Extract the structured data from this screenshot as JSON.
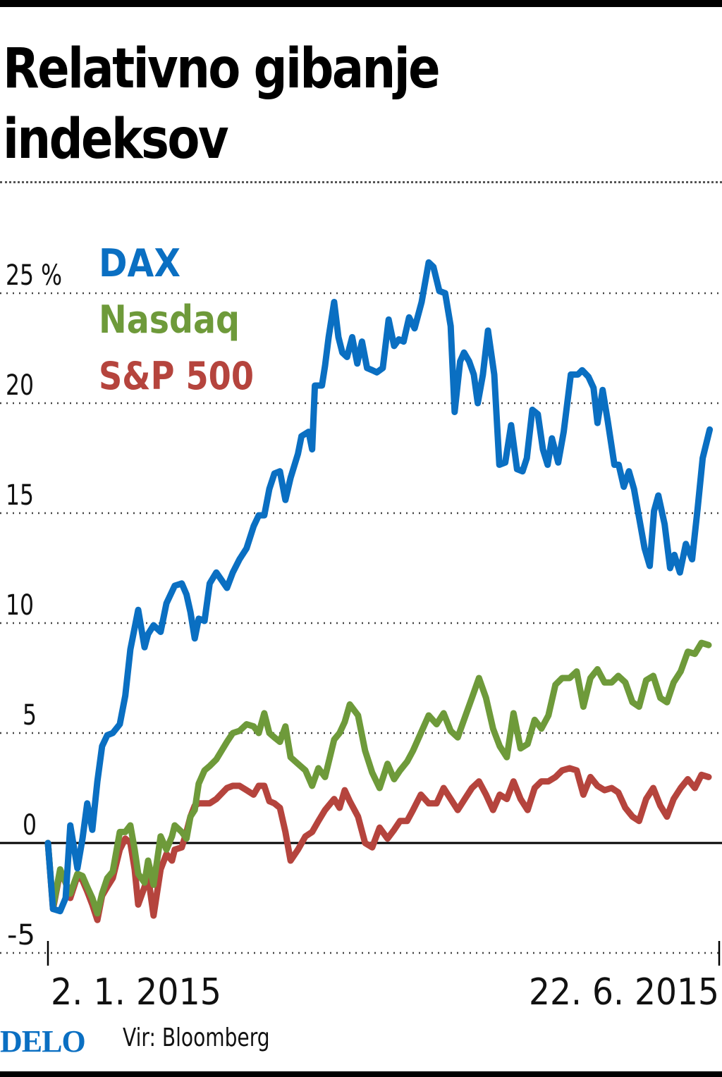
{
  "title": "Relativno gibanje indeksov",
  "title_lines": [
    "Relativno gibanje",
    "indeksov"
  ],
  "footer": {
    "logo": "DELO",
    "source": "Vir: Bloomberg"
  },
  "colors": {
    "DAX": "#0a6fc2",
    "Nasdaq": "#6e9a3a",
    "S&P 500": "#b5443d",
    "grid": "#444444",
    "zero_line": "#000000"
  },
  "chart_data": {
    "type": "line",
    "title": "Relativno gibanje indeksov",
    "xlabel": "",
    "ylabel": "%",
    "x_unit": "days since 2. 1. 2015",
    "xlim": [
      0,
      171
    ],
    "ylim": [
      -5,
      27
    ],
    "x_tick_labels": [
      "2. 1. 2015",
      "22. 6. 2015"
    ],
    "x_ticks": [
      0,
      171
    ],
    "y_ticks": [
      -5,
      0,
      5,
      10,
      15,
      20,
      25
    ],
    "y_tick_labels": [
      "-5",
      "0",
      "5",
      "10",
      "15",
      "20",
      "25 %"
    ],
    "grid": true,
    "legend": {
      "placement": "top-left",
      "entries": [
        "DAX",
        "Nasdaq",
        "S&P 500"
      ]
    },
    "series": [
      {
        "name": "DAX",
        "x": [
          0,
          1.3,
          3.1,
          4.5,
          5.7,
          7.5,
          8.8,
          10,
          11.3,
          12.6,
          13.8,
          15.1,
          16.5,
          18.3,
          19.7,
          21,
          23,
          24.6,
          25.5,
          26.9,
          28.7,
          30.2,
          32.3,
          34.1,
          35.3,
          36.3,
          37.4,
          38.4,
          39.9,
          41.2,
          42.9,
          45.6,
          47.1,
          48.8,
          50.6,
          52.4,
          53.7,
          55.1,
          56.4,
          57.7,
          59.1,
          60.5,
          61.8,
          63.7,
          64.6,
          66.4,
          67.3,
          68,
          69.8,
          70.6,
          71.5,
          72.9,
          74,
          75,
          76.2,
          77.5,
          78.8,
          80,
          81.3,
          82.6,
          83.8,
          85.3,
          86.8,
          88.2,
          89.4,
          90.6,
          92,
          93.4,
          94.3,
          95.2,
          97,
          98.2,
          99.7,
          101.2,
          102.6,
          103.6,
          105,
          106,
          107.3,
          108.5,
          109.5,
          110.8,
          112.1,
          113.7,
          115,
          116.5,
          118,
          119.5,
          120.9,
          122,
          123.4,
          124.8,
          126.1,
          127.3,
          128.4,
          130,
          131.4,
          133.2,
          135,
          136.1,
          137.7,
          139,
          140,
          141.3,
          142.6,
          144.3,
          145.4,
          146.7,
          148,
          149.3,
          150.6,
          152,
          153.3,
          154.4,
          155.5,
          157.1,
          158.5,
          159.6,
          161,
          162.5,
          164.1,
          165.5,
          166.8,
          168.6
        ],
        "values": [
          0,
          -3,
          -3.1,
          -2.5,
          0.8,
          -1.15,
          0.2,
          1.8,
          0.6,
          2.8,
          4.4,
          4.9,
          5.0,
          5.4,
          6.7,
          8.8,
          10.6,
          8.9,
          9.5,
          9.9,
          9.6,
          10.9,
          11.7,
          11.8,
          11.3,
          10.5,
          9.3,
          10.2,
          10.1,
          11.8,
          12.3,
          11.6,
          12.3,
          12.9,
          13.4,
          14.4,
          14.9,
          14.9,
          16.1,
          16.8,
          16.9,
          15.6,
          16.6,
          17.7,
          18.5,
          18.7,
          17.9,
          20.8,
          20.8,
          21.7,
          23.0,
          24.6,
          23.0,
          22.3,
          22.1,
          23.0,
          21.8,
          22.8,
          21.6,
          21.5,
          21.4,
          21.6,
          23.8,
          22.6,
          22.9,
          22.8,
          23.9,
          23.4,
          24.0,
          24.6,
          26.4,
          26.2,
          25.1,
          25.0,
          23.5,
          19.6,
          21.9,
          22.3,
          21.9,
          21.3,
          20.0,
          21.3,
          23.3,
          21.3,
          17.2,
          17.3,
          19.0,
          17.0,
          16.9,
          17.5,
          19.7,
          19.5,
          17.9,
          17.2,
          18.4,
          17.3,
          18.7,
          21.3,
          21.3,
          21.5,
          21.2,
          20.7,
          19.1,
          20.6,
          19.2,
          17.2,
          17.2,
          16.2,
          16.9,
          16.1,
          14.8,
          13.4,
          12.6,
          15.1,
          15.8,
          14.5,
          12.5,
          13.1,
          12.3,
          13.6,
          12.9,
          15.2,
          17.5,
          18.8
        ]
      },
      {
        "name": "Nasdaq",
        "x": [
          0,
          1.3,
          3.1,
          4.5,
          5.7,
          7.5,
          8.8,
          10,
          11.3,
          12.6,
          13.8,
          15.1,
          16.5,
          18.3,
          19.7,
          21,
          22.1,
          23,
          24.6,
          25.5,
          26.9,
          28.7,
          30.2,
          31.6,
          32.3,
          34.1,
          35.3,
          36.3,
          37.4,
          38.4,
          39.9,
          41.2,
          42.9,
          45.6,
          47.1,
          48.8,
          50.6,
          52.4,
          53.7,
          55.1,
          56.4,
          57.7,
          59.1,
          60.5,
          61.8,
          63.7,
          65.6,
          67.3,
          68.9,
          70.6,
          72.9,
          74.3,
          75.6,
          76.9,
          79,
          80.8,
          82.6,
          84.5,
          86.5,
          88.2,
          89.7,
          91.5,
          93,
          95,
          97,
          99,
          100.8,
          102.6,
          104.4,
          106.2,
          108,
          109.8,
          111.6,
          113.4,
          115.1,
          116.9,
          118.6,
          120.4,
          122.2,
          124,
          125.7,
          127.5,
          129.3,
          131,
          132.9,
          134.7,
          136.4,
          138.2,
          140,
          141.8,
          143.6,
          145.3,
          147.1,
          148.9,
          150.6,
          152.4,
          154.2,
          156,
          157.7,
          159.4,
          161.2,
          163,
          164.8,
          166.5,
          168.3
        ],
        "values": [
          0,
          -2.9,
          -1.2,
          -1.8,
          -2.3,
          -1.4,
          -1.5,
          -2.0,
          -2.5,
          -3.2,
          -2.3,
          -1.6,
          -1.3,
          0.5,
          0.5,
          0.8,
          -0.3,
          -1.4,
          -1.8,
          -0.8,
          -1.9,
          0.3,
          -0.3,
          0.3,
          0.8,
          0.5,
          0.2,
          1.2,
          1.5,
          2.7,
          3.3,
          3.5,
          3.8,
          4.6,
          5.0,
          5.1,
          5.4,
          5.3,
          5.0,
          5.9,
          5.0,
          4.8,
          4.6,
          5.3,
          3.9,
          3.6,
          3.3,
          2.6,
          3.4,
          3.0,
          4.7,
          5.0,
          5.5,
          6.3,
          5.8,
          4.2,
          3.2,
          2.5,
          3.6,
          2.9,
          3.3,
          3.7,
          4.2,
          5.0,
          5.8,
          5.4,
          5.9,
          5.1,
          4.8,
          5.7,
          6.6,
          7.5,
          6.6,
          5.2,
          4.4,
          3.9,
          5.9,
          4.3,
          4.5,
          5.6,
          5.2,
          5.8,
          7.2,
          7.5,
          7.5,
          7.8,
          6.2,
          7.5,
          7.9,
          7.3,
          7.3,
          7.6,
          7.3,
          6.4,
          6.2,
          7.4,
          7.6,
          6.6,
          6.4,
          7.3,
          7.8,
          8.7,
          8.6,
          9.1,
          9.0
        ]
      },
      {
        "name": "S&P 500",
        "x": [
          0,
          1.3,
          3.1,
          4.5,
          5.7,
          7.5,
          8.8,
          10,
          11.3,
          12.6,
          13.8,
          15.1,
          16.5,
          18.3,
          19.7,
          21,
          22.1,
          23,
          24.6,
          25.5,
          26.9,
          28.7,
          30.2,
          31.6,
          32.3,
          34.1,
          35.3,
          36.3,
          37.4,
          38.4,
          39.9,
          41.2,
          42.9,
          45.6,
          47.1,
          48.8,
          50.6,
          52.4,
          53.7,
          55.1,
          56.4,
          57.7,
          59.1,
          60.5,
          61.8,
          63.7,
          65.6,
          67.3,
          68.9,
          70.6,
          72.9,
          74.3,
          75.6,
          76.9,
          79,
          80.8,
          82.6,
          84.5,
          86.5,
          88.2,
          89.7,
          91.5,
          93,
          95,
          97,
          99,
          100.8,
          102.6,
          104.4,
          106.2,
          108,
          109.8,
          111.6,
          113.4,
          115.1,
          116.9,
          118.6,
          120.4,
          122.2,
          124,
          125.7,
          127.5,
          129.3,
          131,
          132.9,
          134.7,
          136.4,
          138.2,
          140,
          141.8,
          143.6,
          145.3,
          147.1,
          148.9,
          150.6,
          152.4,
          154.2,
          156,
          157.7,
          159.4,
          161.2,
          163,
          164.8,
          166.5,
          168.3
        ],
        "values": [
          0,
          -3.0,
          -1.3,
          -1.8,
          -2.5,
          -1.5,
          -1.7,
          -2.2,
          -2.8,
          -3.5,
          -2.4,
          -2.0,
          -1.6,
          -0.3,
          0.2,
          0.0,
          -1.2,
          -2.8,
          -2.0,
          -1.5,
          -3.3,
          -1.2,
          -0.5,
          -0.8,
          -0.3,
          -0.2,
          0.5,
          1.2,
          1.7,
          1.8,
          1.8,
          1.8,
          2.0,
          2.5,
          2.6,
          2.6,
          2.4,
          2.2,
          2.6,
          2.6,
          1.9,
          1.8,
          1.6,
          0.5,
          -0.8,
          -0.3,
          0.3,
          0.5,
          1.0,
          1.5,
          2.0,
          1.6,
          2.4,
          1.9,
          1.2,
          0.0,
          -0.2,
          0.7,
          0.2,
          0.6,
          1.0,
          1.0,
          1.5,
          2.2,
          1.8,
          1.8,
          2.5,
          2.0,
          1.5,
          2.0,
          2.5,
          2.8,
          2.2,
          1.5,
          2.2,
          2.0,
          2.8,
          2.0,
          1.5,
          2.5,
          2.8,
          2.8,
          3.0,
          3.3,
          3.4,
          3.3,
          2.2,
          3.0,
          2.6,
          2.4,
          2.5,
          2.3,
          1.6,
          1.2,
          1.0,
          2.0,
          2.5,
          1.7,
          1.2,
          2.0,
          2.5,
          2.9,
          2.5,
          3.1,
          3.0
        ]
      }
    ]
  }
}
